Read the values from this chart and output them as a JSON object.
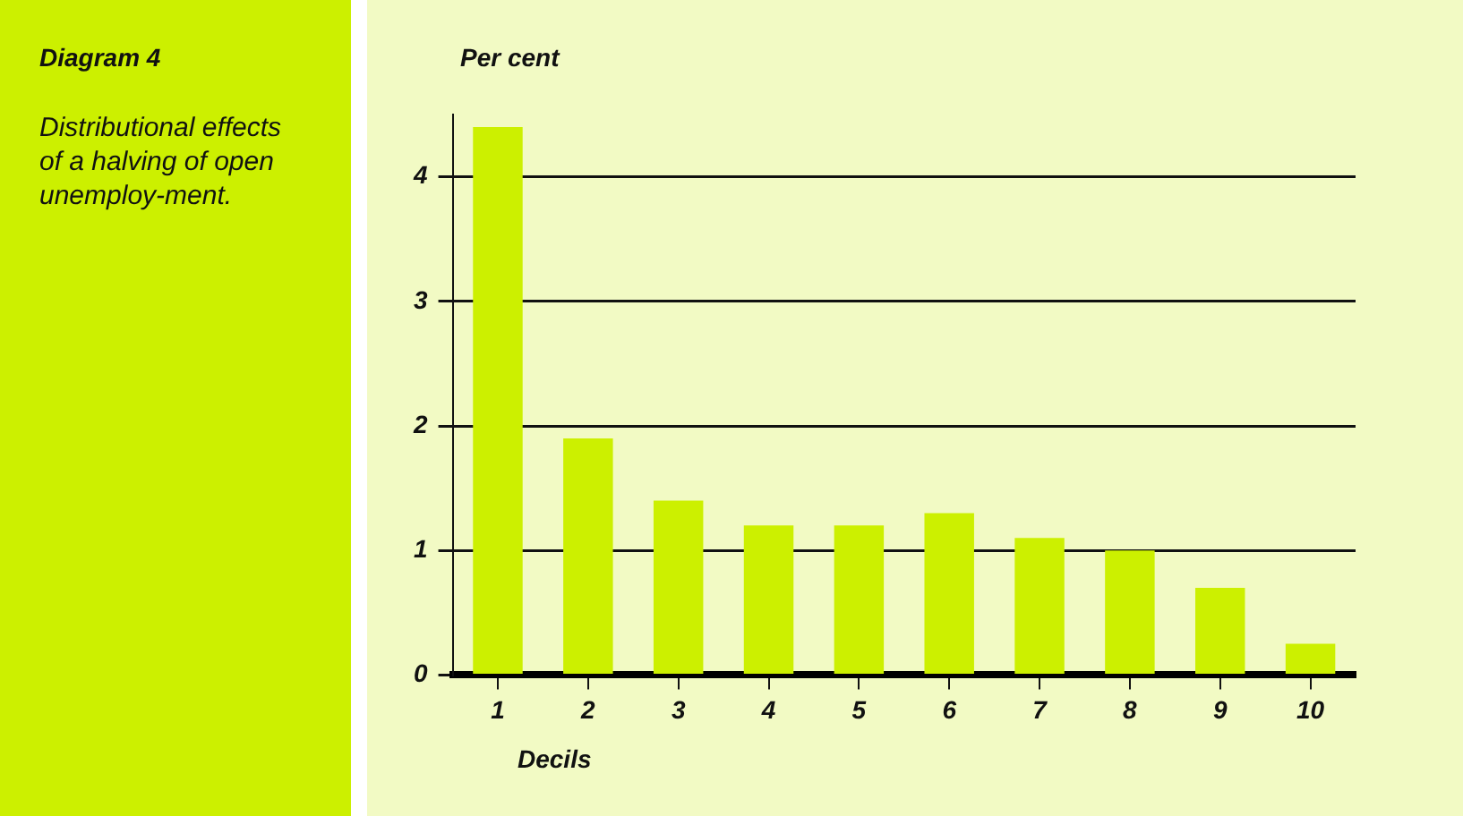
{
  "chart_data": {
    "type": "bar",
    "title": "Diagram 4",
    "subtitle": "Distributional effects of a halving of open unemploy-ment.",
    "ylabel": "Per cent",
    "xlabel": "Decils",
    "categories": [
      "1",
      "2",
      "3",
      "4",
      "5",
      "6",
      "7",
      "8",
      "9",
      "10"
    ],
    "values": [
      4.4,
      1.9,
      1.4,
      1.2,
      1.2,
      1.3,
      1.1,
      1.0,
      0.7,
      0.25
    ],
    "color": "#ccf000",
    "ylim": [
      0,
      4.5
    ],
    "yticks": [
      0,
      1,
      2,
      3,
      4
    ],
    "grid": "y",
    "legend": false
  }
}
